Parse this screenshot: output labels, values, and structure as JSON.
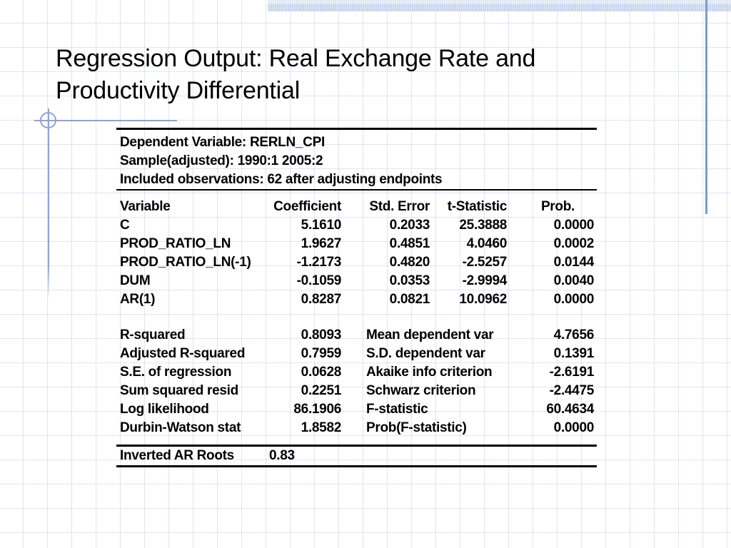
{
  "slide": {
    "title_lines": [
      "Regression Output: Real Exchange Rate and",
      "Productivity Differential"
    ]
  },
  "regression": {
    "header_lines": [
      "Dependent Variable: RERLN_CPI",
      "Sample(adjusted): 1990:1 2005:2",
      "Included observations: 62 after adjusting endpoints"
    ],
    "columns": [
      "Variable",
      "Coefficient",
      "Std. Error",
      "t-Statistic",
      "Prob."
    ],
    "coefficients": [
      {
        "variable": "C",
        "coefficient": "5.1610",
        "std_error": "0.2033",
        "t_statistic": "25.3888",
        "prob": "0.0000"
      },
      {
        "variable": "PROD_RATIO_LN",
        "coefficient": "1.9627",
        "std_error": "0.4851",
        "t_statistic": "4.0460",
        "prob": "0.0002"
      },
      {
        "variable": "PROD_RATIO_LN(-1)",
        "coefficient": "-1.2173",
        "std_error": "0.4820",
        "t_statistic": "-2.5257",
        "prob": "0.0144"
      },
      {
        "variable": "DUM",
        "coefficient": "-0.1059",
        "std_error": "0.0353",
        "t_statistic": "-2.9994",
        "prob": "0.0040"
      },
      {
        "variable": "AR(1)",
        "coefficient": "0.8287",
        "std_error": "0.0821",
        "t_statistic": "10.0962",
        "prob": "0.0000"
      }
    ],
    "summary": [
      {
        "left_label": "R-squared",
        "left_value": "0.8093",
        "right_label": "Mean dependent var",
        "right_value": "4.7656"
      },
      {
        "left_label": "Adjusted R-squared",
        "left_value": "0.7959",
        "right_label": "S.D. dependent var",
        "right_value": "0.1391"
      },
      {
        "left_label": "S.E. of regression",
        "left_value": "0.0628",
        "right_label": "Akaike info criterion",
        "right_value": "-2.6191"
      },
      {
        "left_label": "Sum squared resid",
        "left_value": "0.2251",
        "right_label": "Schwarz criterion",
        "right_value": "-2.4475"
      },
      {
        "left_label": "Log likelihood",
        "left_value": "86.1906",
        "right_label": "F-statistic",
        "right_value": "60.4634"
      },
      {
        "left_label": "Durbin-Watson stat",
        "left_value": "1.8582",
        "right_label": "Prob(F-statistic)",
        "right_value": "0.0000"
      }
    ],
    "footer": {
      "label": "Inverted AR Roots",
      "value": "0.83"
    }
  },
  "colors": {
    "top_band": "#c7d4ec",
    "ornament_blue": "#8fa2d4",
    "right_line_blue": "#7e9ac9",
    "grid_line": "#bcc3e8",
    "text": "#000000"
  }
}
